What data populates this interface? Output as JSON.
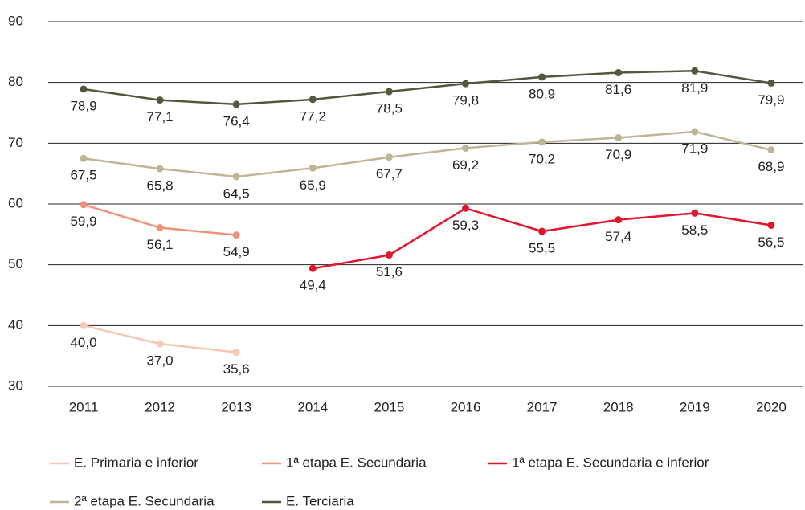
{
  "chart_data": {
    "type": "line",
    "categories": [
      "2011",
      "2012",
      "2013",
      "2014",
      "2015",
      "2016",
      "2017",
      "2018",
      "2019",
      "2020"
    ],
    "ylim": [
      30,
      90
    ],
    "yticks": [
      30,
      40,
      50,
      60,
      70,
      80,
      90
    ],
    "grid": true,
    "legend": "bottom",
    "series": [
      {
        "name": "E. Primaria e inferior",
        "color": "#f7c6b4",
        "values": [
          40.0,
          37.0,
          35.6,
          null,
          null,
          null,
          null,
          null,
          null,
          null
        ],
        "value_labels": [
          "40,0",
          "37,0",
          "35,6",
          null,
          null,
          null,
          null,
          null,
          null,
          null
        ]
      },
      {
        "name": "1ª etapa E. Secundaria",
        "color": "#ef9279",
        "values": [
          59.9,
          56.1,
          54.9,
          null,
          null,
          null,
          null,
          null,
          null,
          null
        ],
        "value_labels": [
          "59,9",
          "56,1",
          "54,9",
          null,
          null,
          null,
          null,
          null,
          null,
          null
        ]
      },
      {
        "name": "1ª etapa E. Secundaria e inferior",
        "color": "#e1152b",
        "values": [
          null,
          null,
          null,
          49.4,
          51.6,
          59.3,
          55.5,
          57.4,
          58.5,
          56.5
        ],
        "value_labels": [
          null,
          null,
          null,
          "49,4",
          "51,6",
          "59,3",
          "55,5",
          "57,4",
          "58,5",
          "56,5"
        ]
      },
      {
        "name": "2ª etapa E. Secundaria",
        "color": "#bcb596",
        "values": [
          67.5,
          65.8,
          64.5,
          65.9,
          67.7,
          69.2,
          70.2,
          70.9,
          71.9,
          68.9
        ],
        "value_labels": [
          "67,5",
          "65,8",
          "64,5",
          "65,9",
          "67,7",
          "69,2",
          "70,2",
          "70,9",
          "71,9",
          "68,9"
        ]
      },
      {
        "name": "E. Terciaria",
        "color": "#56563f",
        "values": [
          78.9,
          77.1,
          76.4,
          77.2,
          78.5,
          79.8,
          80.9,
          81.6,
          81.9,
          79.9
        ],
        "value_labels": [
          "78,9",
          "77,1",
          "76,4",
          "77,2",
          "78,5",
          "79,8",
          "80,9",
          "81,6",
          "81,9",
          "79,9"
        ]
      }
    ]
  }
}
